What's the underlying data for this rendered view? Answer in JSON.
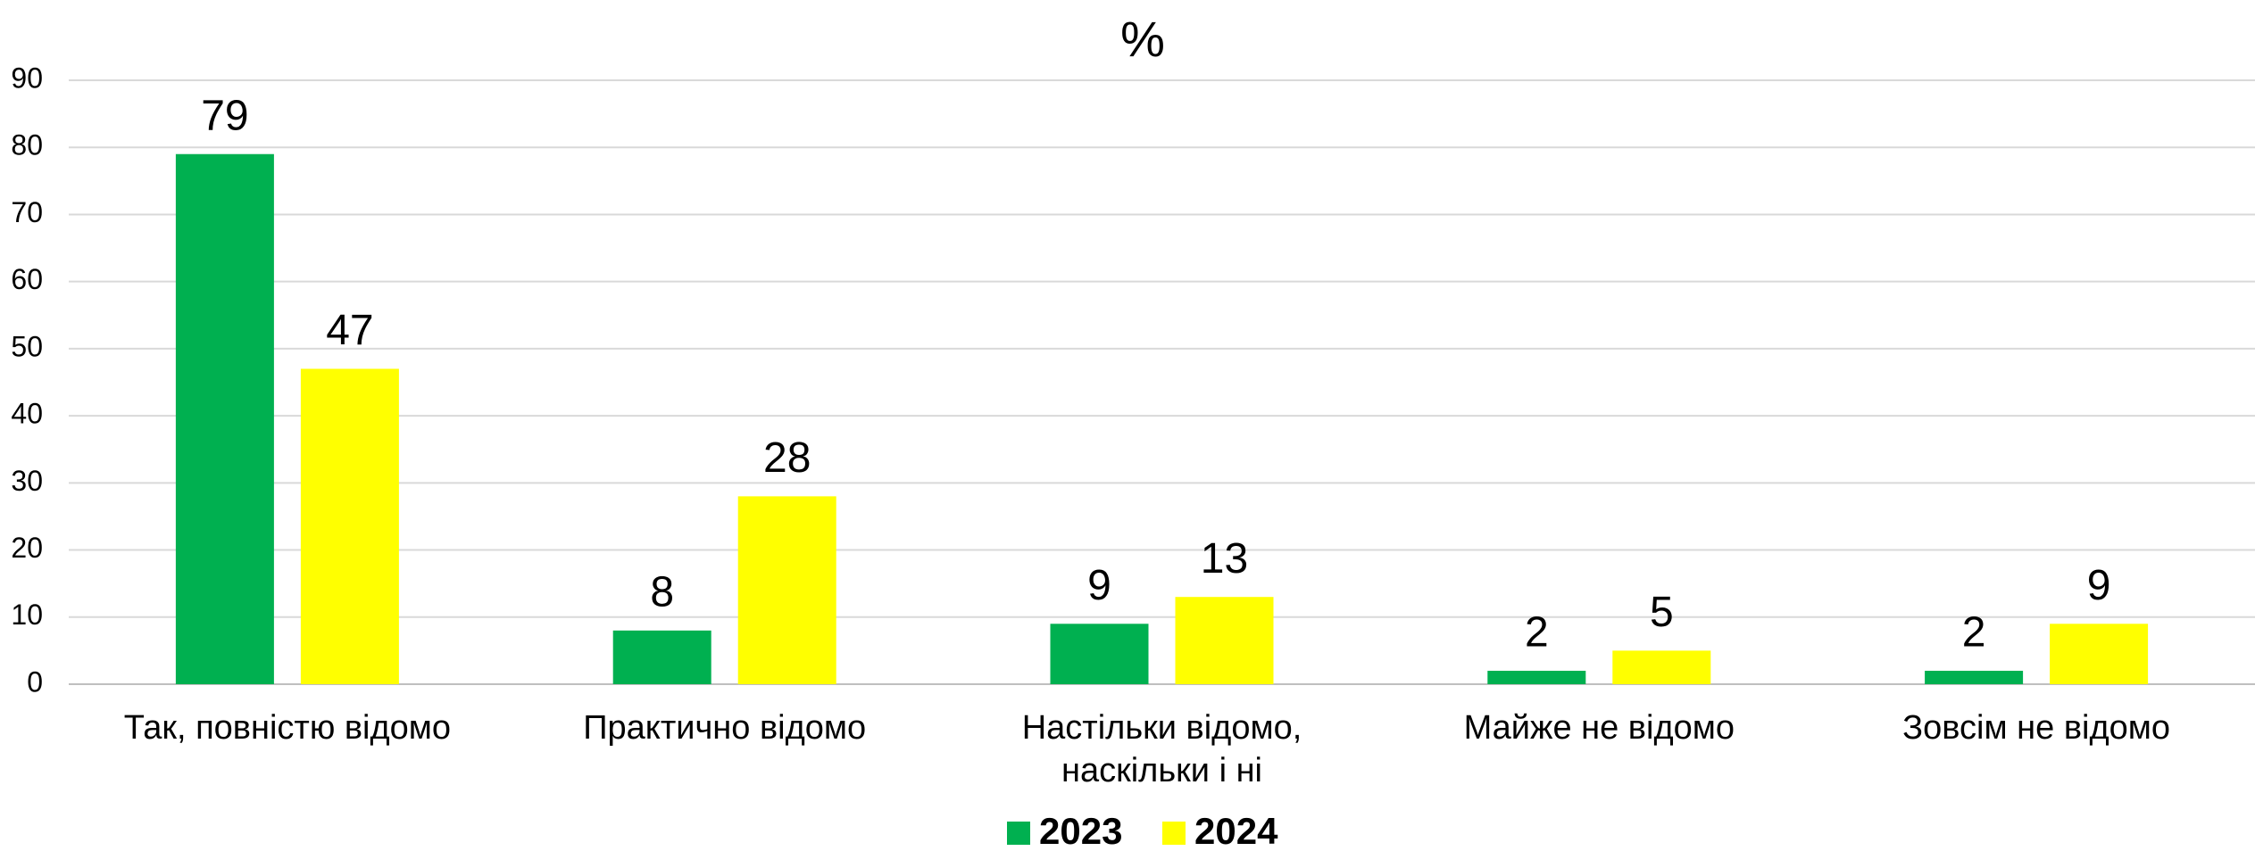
{
  "chart_data": {
    "type": "bar",
    "title": "%",
    "categories": [
      "Так, повністю відомо",
      "Практично відомо",
      "Настільки відомо,\nнаскільки і ні",
      "Майже не відомо",
      "Зовсім не відомо"
    ],
    "series": [
      {
        "name": "2023",
        "color": "#00b050",
        "values": [
          79,
          8,
          9,
          2,
          2
        ]
      },
      {
        "name": "2024",
        "color": "#ffff00",
        "values": [
          47,
          28,
          13,
          5,
          9
        ]
      }
    ],
    "ylim": [
      0,
      90
    ],
    "yticks": [
      0,
      10,
      20,
      30,
      40,
      50,
      60,
      70,
      80,
      90
    ],
    "grid": true,
    "legend": "bottom"
  }
}
